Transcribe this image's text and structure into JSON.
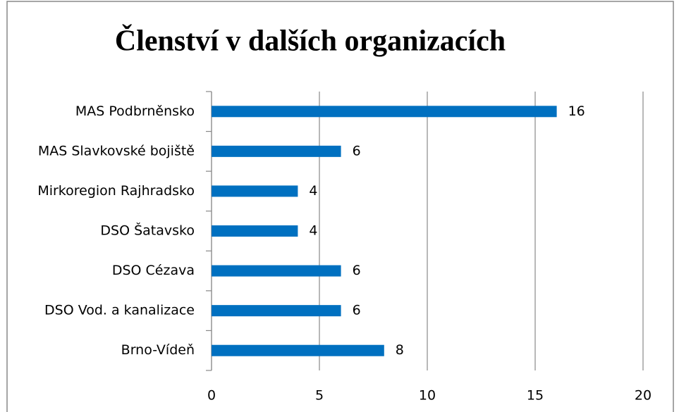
{
  "chart_data": {
    "type": "hbar",
    "title": "Členství v dalších organizacích",
    "categories": [
      "MAS Podbrněnsko",
      "MAS Slavkovské bojiště",
      "Mirkoregion Rajhradsko",
      "DSO Šatavsko",
      "DSO Cézava",
      "DSO Vod. a kanalizace",
      "Brno-Vídeň"
    ],
    "values": [
      16,
      6,
      4,
      4,
      6,
      6,
      8
    ],
    "color": "#0070c0",
    "xlim": [
      0,
      20
    ],
    "xticks": [
      0,
      5,
      10,
      15,
      20
    ],
    "grid": true
  }
}
